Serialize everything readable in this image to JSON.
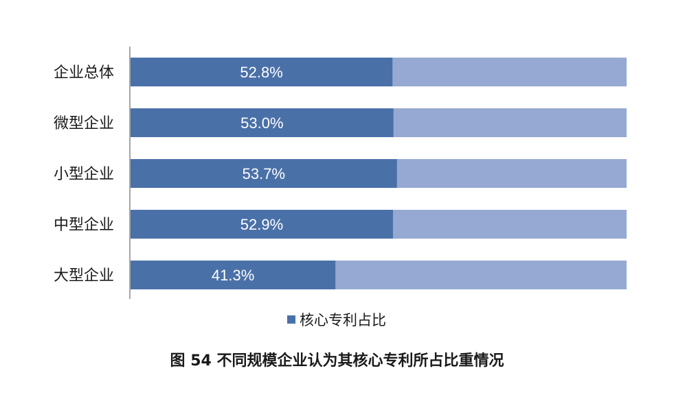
{
  "chart_data": {
    "type": "bar",
    "orientation": "horizontal",
    "stacked_100": true,
    "categories": [
      "企业总体",
      "微型企业",
      "小型企业",
      "中型企业",
      "大型企业"
    ],
    "series": [
      {
        "name": "核心专利占比",
        "values": [
          52.8,
          53.0,
          53.7,
          52.9,
          41.3
        ],
        "data_labels": [
          "52.8%",
          "53.0%",
          "53.7%",
          "52.9%",
          "41.3%"
        ],
        "color": "#4a70a8"
      }
    ],
    "remainder_color": "#95a9d2",
    "xlim": [
      0,
      100
    ],
    "legend_position": "bottom",
    "grid": false
  },
  "caption": "图 54 不同规模企业认为其核心专利所占比重情况"
}
